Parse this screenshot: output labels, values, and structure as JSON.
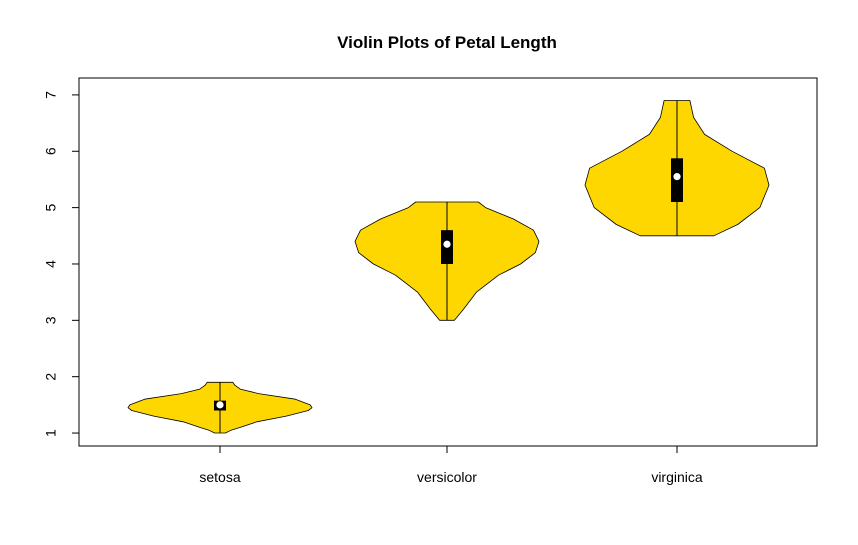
{
  "chart_data": {
    "type": "violin",
    "title": "Violin Plots of Petal Length",
    "xlabel": "",
    "ylabel": "",
    "ylim": [
      0.77,
      7.3
    ],
    "yticks": [
      1,
      2,
      3,
      4,
      5,
      6,
      7
    ],
    "grid": false,
    "legend": "none",
    "fill_color": "#FFD700",
    "categories": [
      "setosa",
      "versicolor",
      "virginica"
    ],
    "violins": [
      {
        "name": "setosa",
        "min": 1.0,
        "q1": 1.4,
        "median": 1.5,
        "q3": 1.575,
        "max": 1.9,
        "profile": [
          [
            1.0,
            0.06
          ],
          [
            1.05,
            0.12
          ],
          [
            1.1,
            0.22
          ],
          [
            1.2,
            0.4
          ],
          [
            1.3,
            0.72
          ],
          [
            1.4,
            0.96
          ],
          [
            1.45,
            1.0
          ],
          [
            1.5,
            0.98
          ],
          [
            1.6,
            0.82
          ],
          [
            1.7,
            0.42
          ],
          [
            1.78,
            0.22
          ],
          [
            1.85,
            0.16
          ],
          [
            1.9,
            0.14
          ]
        ]
      },
      {
        "name": "versicolor",
        "min": 3.0,
        "q1": 4.0,
        "median": 4.35,
        "q3": 4.6,
        "max": 5.1,
        "profile": [
          [
            3.0,
            0.08
          ],
          [
            3.2,
            0.18
          ],
          [
            3.5,
            0.32
          ],
          [
            3.8,
            0.56
          ],
          [
            4.0,
            0.8
          ],
          [
            4.2,
            0.96
          ],
          [
            4.4,
            1.0
          ],
          [
            4.6,
            0.94
          ],
          [
            4.8,
            0.72
          ],
          [
            5.0,
            0.42
          ],
          [
            5.1,
            0.34
          ]
        ]
      },
      {
        "name": "virginica",
        "min": 4.5,
        "q1": 5.1,
        "median": 5.55,
        "q3": 5.875,
        "max": 6.9,
        "profile": [
          [
            4.5,
            0.4
          ],
          [
            4.7,
            0.66
          ],
          [
            5.0,
            0.9
          ],
          [
            5.4,
            1.0
          ],
          [
            5.7,
            0.95
          ],
          [
            6.0,
            0.6
          ],
          [
            6.3,
            0.3
          ],
          [
            6.6,
            0.18
          ],
          [
            6.9,
            0.14
          ]
        ]
      }
    ]
  }
}
